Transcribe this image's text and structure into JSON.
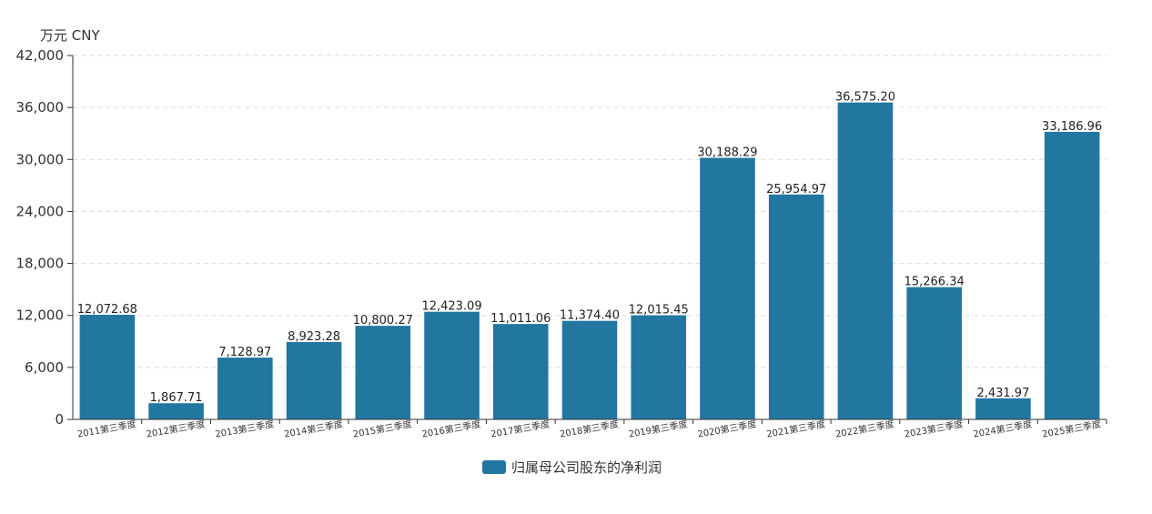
{
  "chart_data": {
    "type": "bar",
    "unit_label": "万元  CNY",
    "categories": [
      "2011第三季度",
      "2012第三季度",
      "2013第三季度",
      "2014第三季度",
      "2015第三季度",
      "2016第三季度",
      "2017第三季度",
      "2018第三季度",
      "2019第三季度",
      "2020第三季度",
      "2021第三季度",
      "2022第三季度",
      "2023第三季度",
      "2024第三季度",
      "2025第三季度"
    ],
    "series": [
      {
        "name": "归属母公司股东的净利润",
        "values": [
          12072.68,
          1867.71,
          7128.97,
          8923.28,
          10800.27,
          12423.09,
          11011.06,
          11374.4,
          12015.45,
          30188.29,
          25954.97,
          36575.2,
          15266.34,
          2431.97,
          33186.96
        ],
        "value_labels": [
          "12,072.68",
          "1,867.71",
          "7,128.97",
          "8,923.28",
          "10,800.27",
          "12,423.09",
          "11,011.06",
          "11,374.40",
          "12,015.45",
          "30,188.29",
          "25,954.97",
          "36,575.20",
          "15,266.34",
          "2,431.97",
          "33,186.96"
        ],
        "color": "#2277a1"
      }
    ],
    "ylim": [
      0,
      42000
    ],
    "yticks": [
      0,
      6000,
      12000,
      18000,
      24000,
      30000,
      36000,
      42000
    ],
    "ytick_labels": [
      "0",
      "6,000",
      "12,000",
      "18,000",
      "24,000",
      "30,000",
      "36,000",
      "42,000"
    ],
    "grid": true,
    "legend_position": "bottom-center"
  }
}
